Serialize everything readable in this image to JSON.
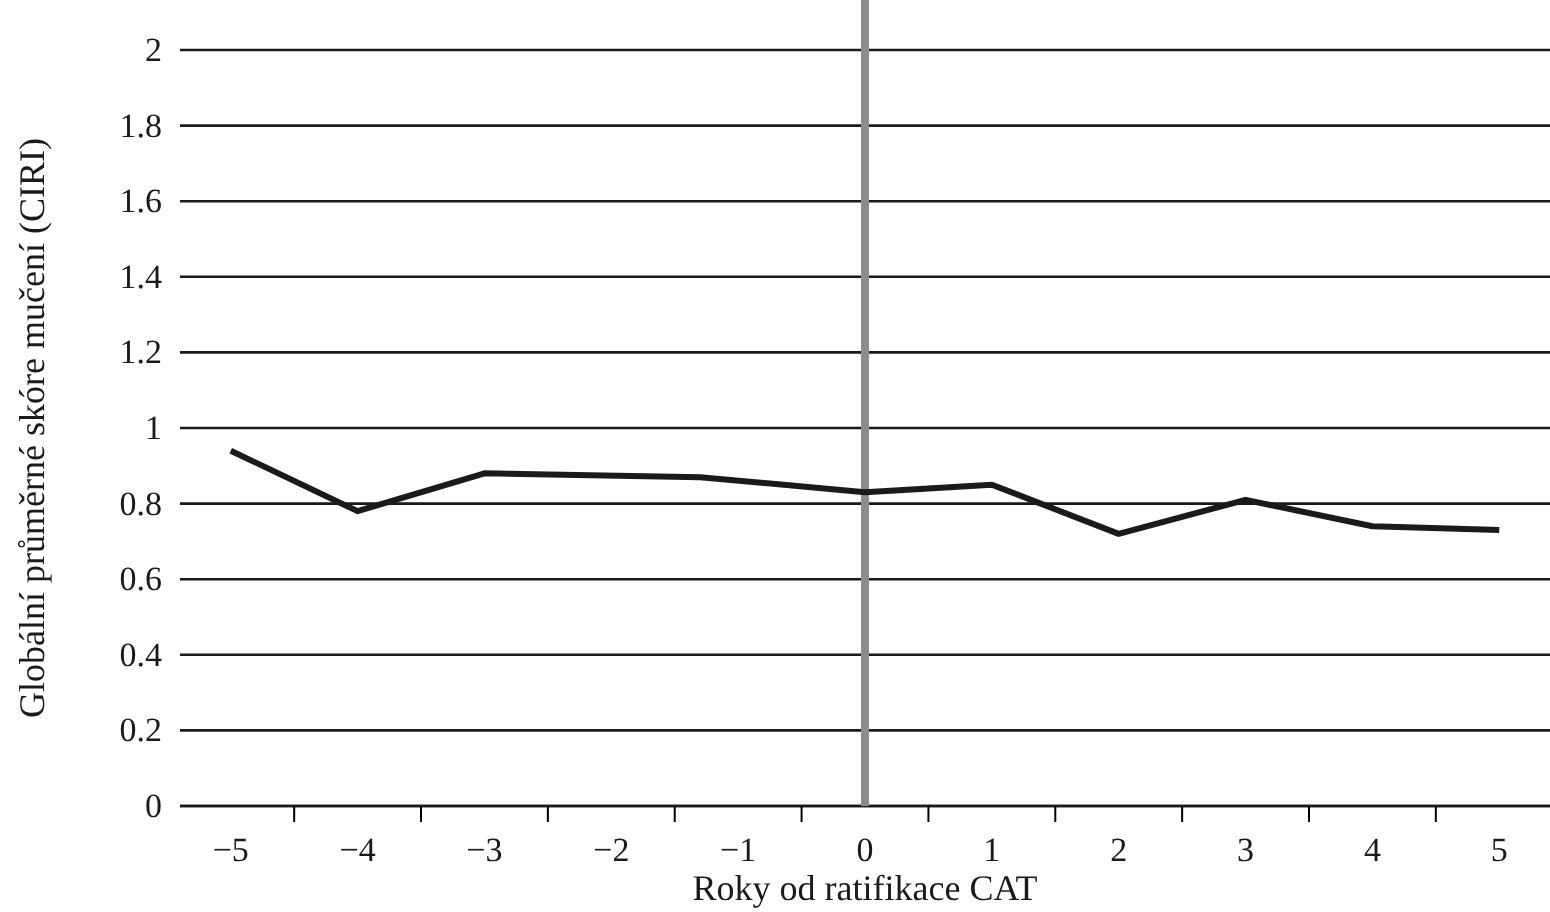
{
  "chart_data": {
    "type": "line",
    "xlabel": "Roky od ratifikace CAT",
    "ylabel": "Globální průměrné skóre mučení (CIRI)",
    "x": [
      -5,
      -4,
      -3,
      -1.3,
      0,
      1,
      2,
      3,
      4,
      5
    ],
    "series": [
      {
        "color": "#1a1a1a",
        "values": [
          0.94,
          0.78,
          0.88,
          0.87,
          0.83,
          0.85,
          0.72,
          0.81,
          0.74,
          0.73
        ]
      }
    ],
    "xlim": [
      -5.4,
      5.4
    ],
    "xticks": [
      {
        "value": -5,
        "label": "−5"
      },
      {
        "value": -4,
        "label": "−4"
      },
      {
        "value": -3,
        "label": "−3"
      },
      {
        "value": -2,
        "label": "−2"
      },
      {
        "value": -1,
        "label": "−1"
      },
      0,
      1,
      2,
      3,
      4,
      5,
      {
        "value": -4.5,
        "label": null
      },
      {
        "value": -3.5,
        "label": null
      },
      {
        "value": -2.5,
        "label": null
      },
      {
        "value": -1.5,
        "label": null
      },
      {
        "value": -0.5,
        "label": null
      },
      {
        "value": 0.5,
        "label": null
      },
      {
        "value": 1.5,
        "label": null
      },
      {
        "value": 2.5,
        "label": null
      },
      {
        "value": 3.5,
        "label": null
      },
      {
        "value": 4.5,
        "label": null
      }
    ],
    "ylim": [
      0,
      2
    ],
    "yticks": [
      0,
      0.2,
      0.4,
      0.6,
      0.8,
      1,
      1.2,
      1.4,
      1.6,
      1.8,
      2
    ],
    "grid": "y",
    "ref_lines": [
      {
        "axis": "x",
        "value": 0,
        "color": "#8c8c8c"
      }
    ],
    "marker": "none",
    "line_style": "solid"
  }
}
